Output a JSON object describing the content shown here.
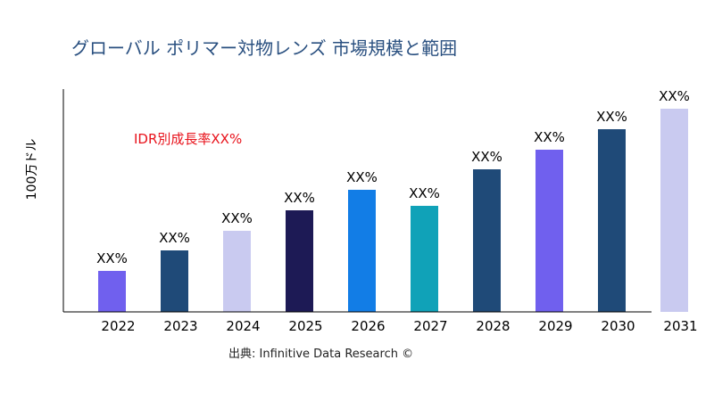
{
  "chart_data": {
    "type": "bar",
    "title": "グローバル ポリマー対物レンズ 市場規模と範囲",
    "ylabel": "100万ドル",
    "xlabel": "",
    "annotation": "IDR別成長率XX%",
    "annotation_color": "#e8121b",
    "source": "出典: Infinitive Data Research ©",
    "categories": [
      "2022",
      "2023",
      "2024",
      "2025",
      "2026",
      "2027",
      "2028",
      "2029",
      "2030",
      "2031"
    ],
    "values": [
      46,
      69,
      91,
      114,
      137,
      119,
      160,
      182,
      205,
      228
    ],
    "data_labels": [
      "XX%",
      "XX%",
      "XX%",
      "XX%",
      "XX%",
      "XX%",
      "XX%",
      "XX%",
      "XX%",
      "XX%"
    ],
    "colors": [
      "#7060ee",
      "#1f4a78",
      "#c9caf0",
      "#1d1a55",
      "#127de6",
      "#10a2b8",
      "#1f4a78",
      "#7060ee",
      "#1f4a78",
      "#c9caf0"
    ],
    "ylim": [
      0,
      250
    ],
    "grid": false,
    "y_ticks_shown": false
  }
}
